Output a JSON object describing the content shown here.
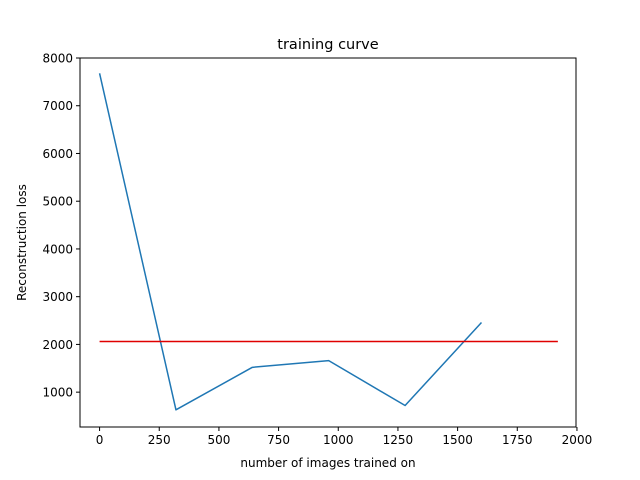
{
  "chart_data": {
    "type": "line",
    "title": "training curve",
    "xlabel": "number of images trained on",
    "ylabel": "Reconstruction loss",
    "xlim": [
      -82,
      1996
    ],
    "ylim": [
      270,
      8000
    ],
    "xticks": [
      0,
      250,
      500,
      750,
      1000,
      1250,
      1500,
      1750,
      2000
    ],
    "yticks": [
      1000,
      2000,
      3000,
      4000,
      5000,
      6000,
      7000,
      8000
    ],
    "xtick_labels": [
      "0",
      "250",
      "500",
      "750",
      "1000",
      "1250",
      "1500",
      "1750",
      "2000"
    ],
    "ytick_labels": [
      "1000",
      "2000",
      "3000",
      "4000",
      "5000",
      "6000",
      "7000",
      "8000"
    ],
    "grid": false,
    "series": [
      {
        "color": "#1f77b4",
        "x": [
          0,
          320,
          640,
          960,
          1280,
          1600
        ],
        "y": [
          7680,
          630,
          1520,
          1660,
          720,
          2460
        ]
      },
      {
        "color": "#e00000",
        "x": [
          0,
          1920
        ],
        "y": [
          2060,
          2060
        ]
      }
    ]
  }
}
